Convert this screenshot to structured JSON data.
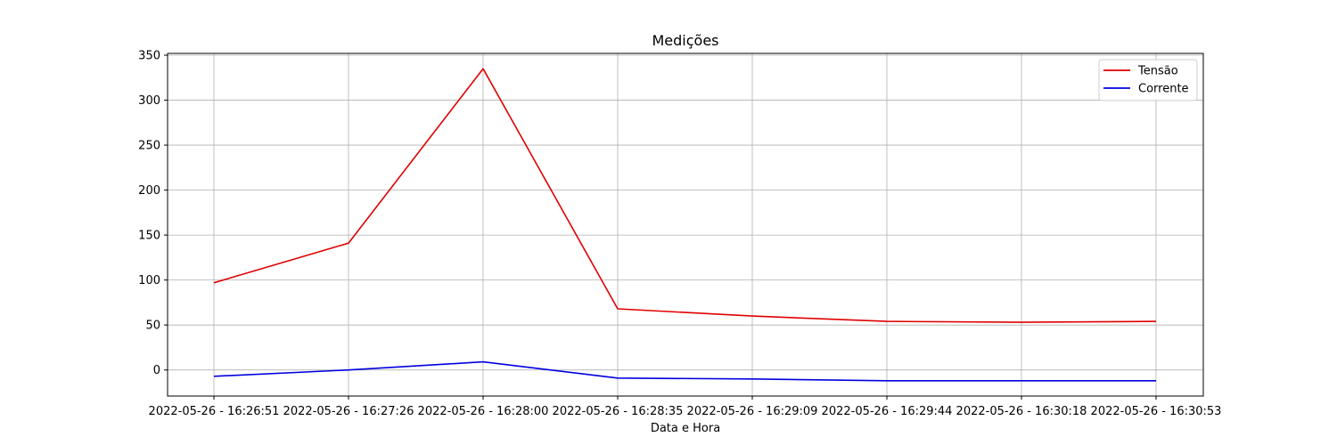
{
  "chart_data": {
    "type": "line",
    "title": "Medições",
    "xlabel": "Data e Hora",
    "ylabel": "",
    "x": [
      "2022-05-26 - 16:26:51",
      "2022-05-26 - 16:27:26",
      "2022-05-26 - 16:28:00",
      "2022-05-26 - 16:28:35",
      "2022-05-26 - 16:29:09",
      "2022-05-26 - 16:29:44",
      "2022-05-26 - 16:30:18",
      "2022-05-26 - 16:30:53"
    ],
    "series": [
      {
        "name": "Tensão",
        "color": "#e00000",
        "values": [
          97,
          141,
          335,
          68,
          60,
          54,
          53,
          54
        ]
      },
      {
        "name": "Corrente",
        "color": "#0000e0",
        "values": [
          -7,
          0,
          9,
          -9,
          -10,
          -12,
          -12,
          -12
        ]
      }
    ],
    "yticks": [
      0,
      50,
      100,
      150,
      200,
      250,
      300,
      350
    ],
    "ylim": [
      -29,
      352
    ],
    "grid": true,
    "legend_position": "top-right"
  }
}
